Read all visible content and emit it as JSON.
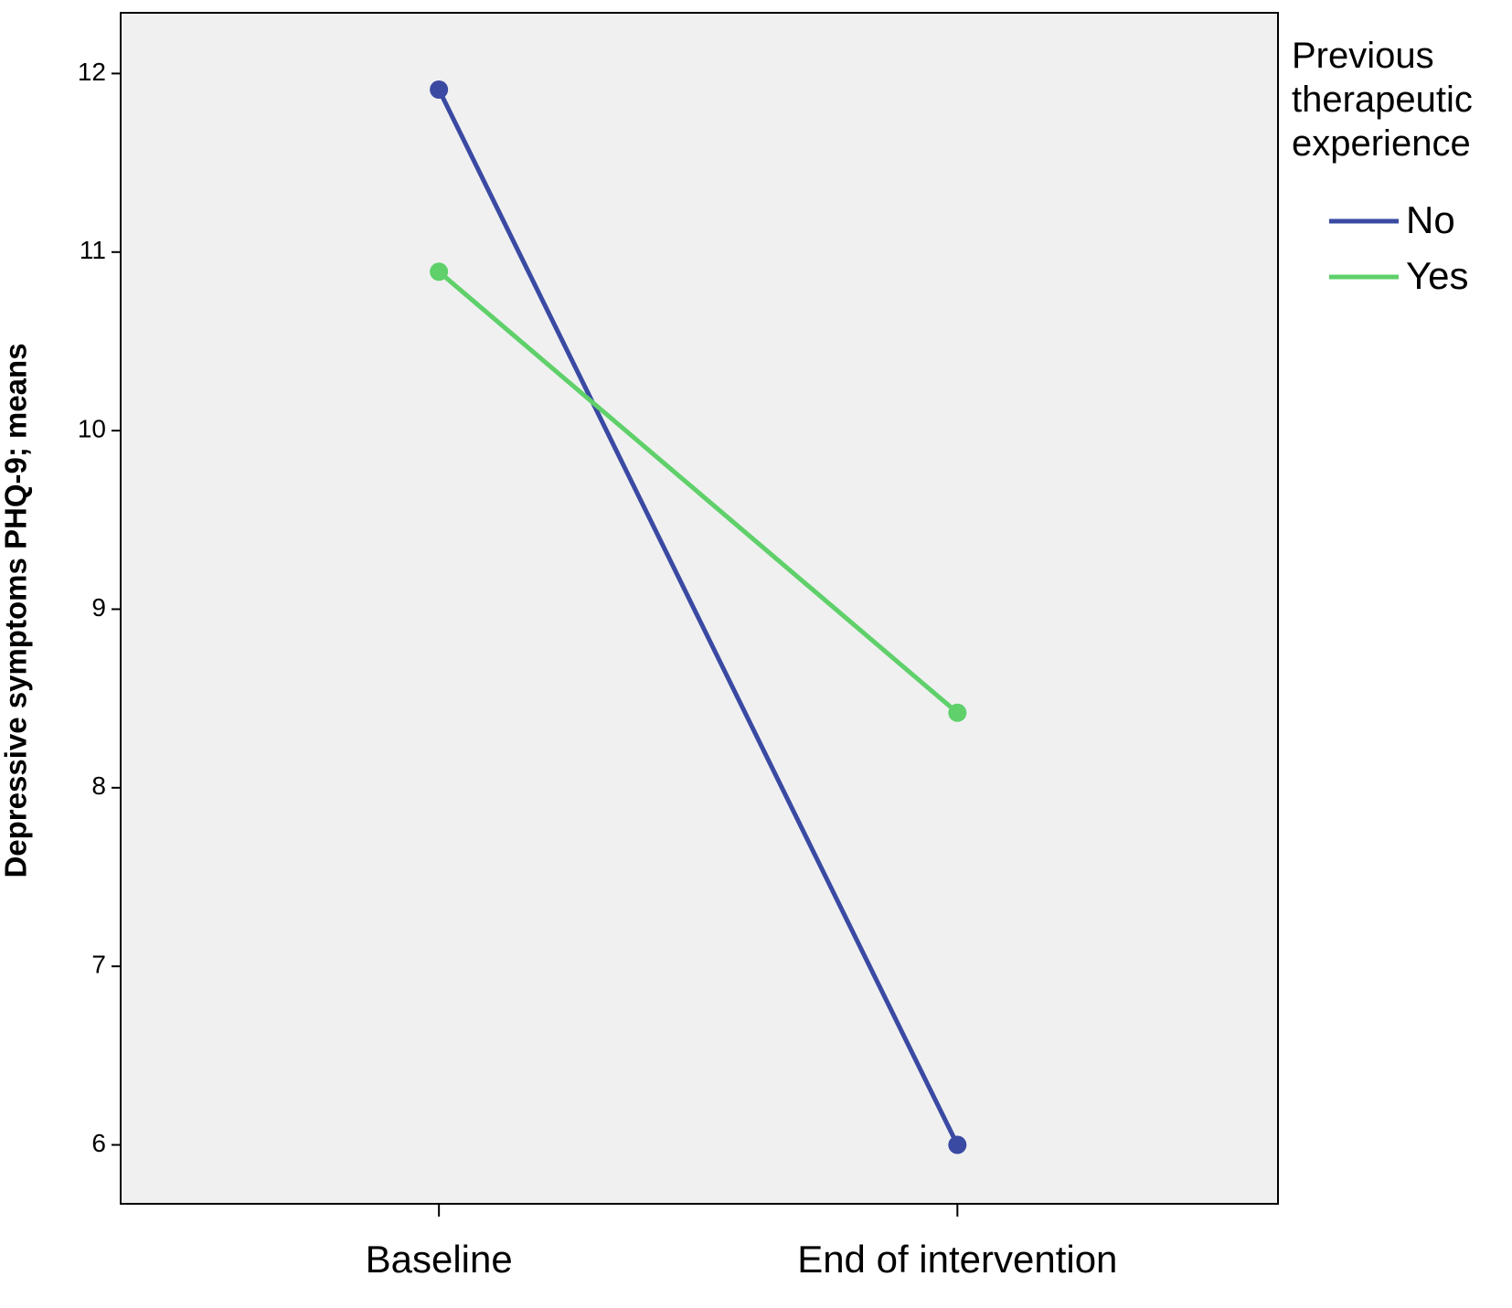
{
  "chart_data": {
    "type": "line",
    "y_label": "Depressive symptoms PHQ-9; means",
    "categories": [
      "Baseline",
      "End of intervention"
    ],
    "series": [
      {
        "name": "No",
        "color": "#3a4aa3",
        "values": [
          11.91,
          6.0
        ]
      },
      {
        "name": "Yes",
        "color": "#5fd06a",
        "values": [
          10.89,
          8.42
        ]
      }
    ],
    "ylim": [
      5.67,
      12.34
    ],
    "yticks": [
      6,
      7,
      8,
      9,
      10,
      11,
      12
    ],
    "legend_title": "Previous therapeutic experience",
    "legend_position": "right"
  }
}
